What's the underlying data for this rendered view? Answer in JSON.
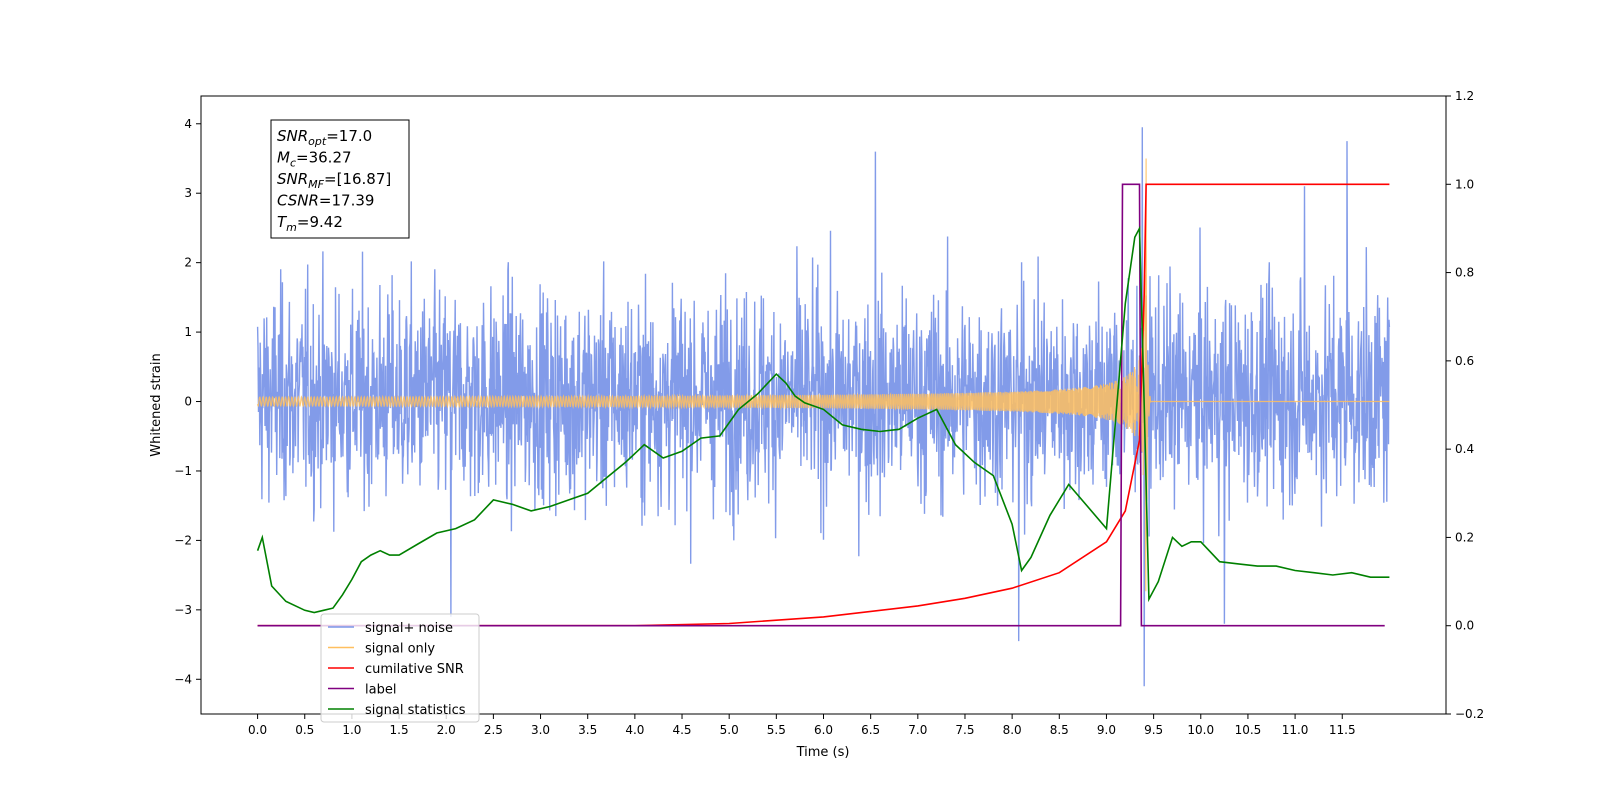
{
  "chart_data": {
    "type": "line",
    "xlabel": "Time (s)",
    "ylabel": "Whitened strain",
    "xlim": [
      -0.6,
      12.6
    ],
    "ylim_left": [
      -4.5,
      4.4
    ],
    "ylim_right": [
      -0.2,
      1.2
    ],
    "x_ticks": [
      0.0,
      0.5,
      1.0,
      1.5,
      2.0,
      2.5,
      3.0,
      3.5,
      4.0,
      4.5,
      5.0,
      5.5,
      6.0,
      6.5,
      7.0,
      7.5,
      8.0,
      8.5,
      9.0,
      9.5,
      10.0,
      10.5,
      11.0,
      11.5
    ],
    "x_tick_labels": [
      "0.0",
      "0.5",
      "1.0",
      "1.5",
      "2.0",
      "2.5",
      "3.0",
      "3.5",
      "4.0",
      "4.5",
      "5.0",
      "5.5",
      "6.0",
      "6.5",
      "7.0",
      "7.5",
      "8.0",
      "8.5",
      "9.0",
      "9.5",
      "10.0",
      "10.5",
      "11.0",
      "11.5"
    ],
    "y_ticks_left": [
      4,
      3,
      2,
      1,
      0,
      -1,
      -2,
      -3,
      -4
    ],
    "y_tick_labels_left": [
      "4",
      "3",
      "2",
      "1",
      "0",
      "−1",
      "−2",
      "−3",
      "−4"
    ],
    "y_ticks_right": [
      1.2,
      1.0,
      0.8,
      0.6,
      0.4,
      0.2,
      0.0,
      -0.2
    ],
    "y_tick_labels_right": [
      "1.2",
      "1.0",
      "0.8",
      "0.6",
      "0.4",
      "0.2",
      "0.0",
      "−0.2"
    ],
    "grid": false,
    "legend_position": "bottom-left",
    "annotation": {
      "lines": [
        {
          "main": "SNR",
          "sub": "opt",
          "value": "=17.0"
        },
        {
          "main": "M",
          "sub": "c",
          "value": "=36.27"
        },
        {
          "main": "SNR",
          "sub": "MF",
          "value": "=[16.87]"
        },
        {
          "main": "CSNR",
          "sub": "",
          "value": "=17.39"
        },
        {
          "main": "T",
          "sub": "m",
          "value": "=9.42"
        }
      ]
    },
    "series": [
      {
        "name": "signal+ noise",
        "axis": "left",
        "color": "#7b96e8",
        "style": "noise",
        "x_range": [
          0.0,
          12.0
        ],
        "envelope": {
          "typical_low": -1.5,
          "typical_high": 2.4
        },
        "spikes": [
          {
            "x": 2.05,
            "y": -3.1
          },
          {
            "x": 6.55,
            "y": 3.6
          },
          {
            "x": 8.07,
            "y": -3.45
          },
          {
            "x": 9.38,
            "y": 3.95
          },
          {
            "x": 9.4,
            "y": -4.1
          },
          {
            "x": 10.25,
            "y": -3.2
          },
          {
            "x": 11.1,
            "y": 3.1
          },
          {
            "x": 11.55,
            "y": 3.75
          }
        ]
      },
      {
        "name": "signal only",
        "axis": "left",
        "color": "#ffbf5f",
        "style": "chirp",
        "x_range": [
          0.0,
          12.0
        ],
        "merger_time": 9.42,
        "peak_amplitude": 3.5
      },
      {
        "name": "cumilative SNR",
        "axis": "right",
        "color": "#ff0000",
        "x": [
          0.0,
          4.0,
          5.0,
          6.0,
          7.0,
          7.5,
          8.0,
          8.5,
          9.0,
          9.2,
          9.35,
          9.4,
          9.42,
          9.45,
          11.5,
          12.0
        ],
        "y": [
          0.0,
          0.0,
          0.005,
          0.02,
          0.045,
          0.062,
          0.085,
          0.12,
          0.19,
          0.26,
          0.42,
          0.75,
          1.0,
          1.0,
          1.0,
          1.0
        ]
      },
      {
        "name": "label",
        "axis": "right",
        "color": "#800080",
        "x": [
          0.0,
          9.15,
          9.17,
          9.35,
          9.37,
          11.95
        ],
        "y": [
          0.0,
          0.0,
          1.0,
          1.0,
          0.0,
          0.0
        ]
      },
      {
        "name": "signal statistics",
        "axis": "right",
        "color": "#008000",
        "x": [
          0.0,
          0.05,
          0.15,
          0.3,
          0.5,
          0.6,
          0.7,
          0.8,
          0.9,
          1.0,
          1.1,
          1.2,
          1.3,
          1.4,
          1.5,
          1.7,
          1.9,
          2.1,
          2.3,
          2.5,
          2.7,
          2.9,
          3.1,
          3.3,
          3.5,
          3.7,
          3.9,
          4.1,
          4.3,
          4.5,
          4.7,
          4.9,
          5.1,
          5.3,
          5.5,
          5.6,
          5.7,
          5.8,
          6.0,
          6.2,
          6.4,
          6.6,
          6.8,
          7.0,
          7.2,
          7.4,
          7.6,
          7.8,
          8.0,
          8.1,
          8.2,
          8.4,
          8.6,
          8.8,
          9.0,
          9.2,
          9.3,
          9.35,
          9.4,
          9.45,
          9.55,
          9.7,
          9.8,
          9.9,
          10.0,
          10.2,
          10.4,
          10.6,
          10.8,
          11.0,
          11.2,
          11.4,
          11.6,
          11.8,
          12.0
        ],
        "y": [
          0.17,
          0.2,
          0.09,
          0.055,
          0.035,
          0.03,
          0.035,
          0.04,
          0.07,
          0.105,
          0.145,
          0.16,
          0.17,
          0.16,
          0.16,
          0.185,
          0.21,
          0.22,
          0.24,
          0.285,
          0.275,
          0.26,
          0.27,
          0.285,
          0.3,
          0.335,
          0.37,
          0.41,
          0.38,
          0.395,
          0.425,
          0.43,
          0.49,
          0.525,
          0.57,
          0.55,
          0.52,
          0.505,
          0.49,
          0.455,
          0.445,
          0.44,
          0.445,
          0.47,
          0.49,
          0.41,
          0.37,
          0.34,
          0.23,
          0.125,
          0.155,
          0.25,
          0.32,
          0.27,
          0.22,
          0.73,
          0.88,
          0.9,
          0.5,
          0.06,
          0.1,
          0.2,
          0.18,
          0.19,
          0.19,
          0.145,
          0.14,
          0.135,
          0.135,
          0.125,
          0.12,
          0.115,
          0.12,
          0.11,
          0.11
        ]
      }
    ]
  }
}
